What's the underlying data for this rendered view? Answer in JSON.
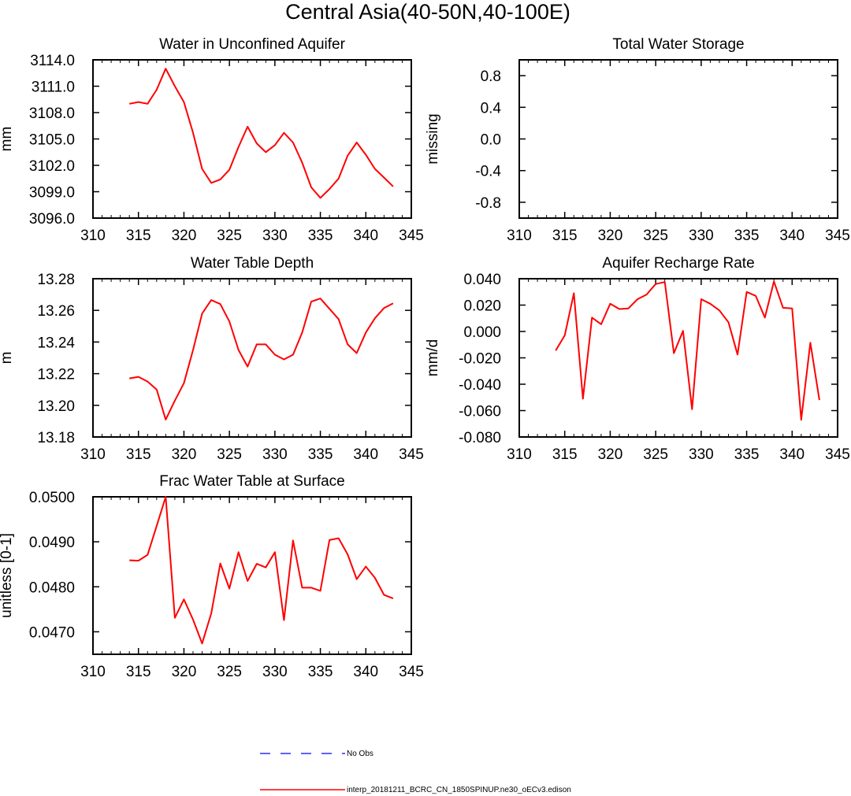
{
  "figure": {
    "title": "Central Asia(40-50N,40-100E)",
    "legend": [
      {
        "label": "No Obs",
        "color": "#0000ff",
        "style": "dashed"
      },
      {
        "label": "interp_20181211_BCRC_CN_1850SPINUP.ne30_oECv3.edison",
        "color": "#ff0000",
        "style": "solid"
      }
    ]
  },
  "chart_data": [
    {
      "type": "line",
      "title": "Water in Unconfined Aquifer",
      "ylabel": "mm",
      "xlim": [
        310,
        345
      ],
      "ylim": [
        3096,
        3114
      ],
      "xticks": [
        "310",
        "315",
        "320",
        "325",
        "330",
        "335",
        "340",
        "345"
      ],
      "yticks": [
        "3096.0",
        "3099.0",
        "3102.0",
        "3105.0",
        "3108.0",
        "3111.0",
        "3114.0"
      ],
      "series": [
        {
          "color": "#ff0000",
          "x": [
            314,
            315,
            316,
            317,
            318,
            319,
            320,
            321,
            322,
            323,
            324,
            325,
            326,
            327,
            328,
            329,
            330,
            331,
            332,
            333,
            334,
            335,
            336,
            337,
            338,
            339,
            340,
            341,
            342,
            343
          ],
          "values": [
            3109.0,
            3109.2,
            3109.0,
            3110.6,
            3113.0,
            3111.0,
            3109.2,
            3105.7,
            3101.6,
            3100.0,
            3100.4,
            3101.5,
            3104.1,
            3106.4,
            3104.5,
            3103.5,
            3104.3,
            3105.7,
            3104.6,
            3102.3,
            3099.5,
            3098.3,
            3099.3,
            3100.5,
            3103.1,
            3104.6,
            3103.2,
            3101.6,
            3100.6,
            3099.6
          ]
        }
      ]
    },
    {
      "type": "line",
      "title": "Total Water Storage",
      "ylabel": "missing",
      "xlim": [
        310,
        345
      ],
      "ylim": [
        -1,
        1
      ],
      "xticks": [
        "310",
        "315",
        "320",
        "325",
        "330",
        "335",
        "340",
        "345"
      ],
      "yticks": [
        "-0.8",
        "-0.4",
        "0.0",
        "0.4",
        "0.8"
      ],
      "series": []
    },
    {
      "type": "line",
      "title": "Water Table Depth",
      "ylabel": "m",
      "xlim": [
        310,
        345
      ],
      "ylim": [
        13.18,
        13.28
      ],
      "xticks": [
        "310",
        "315",
        "320",
        "325",
        "330",
        "335",
        "340",
        "345"
      ],
      "yticks": [
        "13.18",
        "13.20",
        "13.22",
        "13.24",
        "13.26",
        "13.28"
      ],
      "series": [
        {
          "color": "#ff0000",
          "x": [
            314,
            315,
            316,
            317,
            318,
            319,
            320,
            321,
            322,
            323,
            324,
            325,
            326,
            327,
            328,
            329,
            330,
            331,
            332,
            333,
            334,
            335,
            336,
            337,
            338,
            339,
            340,
            341,
            342,
            343
          ],
          "values": [
            13.217,
            13.218,
            13.215,
            13.21,
            13.191,
            13.203,
            13.214,
            13.235,
            13.258,
            13.2665,
            13.264,
            13.253,
            13.235,
            13.2245,
            13.2385,
            13.2385,
            13.232,
            13.229,
            13.232,
            13.246,
            13.2655,
            13.2675,
            13.261,
            13.2545,
            13.2385,
            13.233,
            13.246,
            13.255,
            13.2615,
            13.2645
          ]
        }
      ]
    },
    {
      "type": "line",
      "title": "Aquifer Recharge Rate",
      "ylabel": "mm/d",
      "xlim": [
        310,
        345
      ],
      "ylim": [
        -0.08,
        0.04
      ],
      "xticks": [
        "310",
        "315",
        "320",
        "325",
        "330",
        "335",
        "340",
        "345"
      ],
      "yticks": [
        "-0.080",
        "-0.060",
        "-0.040",
        "-0.020",
        "0.000",
        "0.020",
        "0.040"
      ],
      "series": [
        {
          "color": "#ff0000",
          "x": [
            314,
            315,
            316,
            317,
            318,
            319,
            320,
            321,
            322,
            323,
            324,
            325,
            326,
            327,
            328,
            329,
            330,
            331,
            332,
            333,
            334,
            335,
            336,
            337,
            338,
            339,
            340,
            341,
            342,
            343
          ],
          "values": [
            -0.0145,
            -0.003,
            0.029,
            -0.051,
            0.0105,
            0.0055,
            0.021,
            0.017,
            0.0175,
            0.0245,
            0.028,
            0.036,
            0.0375,
            -0.0165,
            0.0005,
            -0.059,
            0.0245,
            0.021,
            0.016,
            0.007,
            -0.0175,
            0.03,
            0.027,
            0.0105,
            0.038,
            0.018,
            0.0175,
            -0.067,
            -0.0085,
            -0.052
          ]
        }
      ]
    },
    {
      "type": "line",
      "title": "Frac Water Table at Surface",
      "ylabel": "unitless [0-1]",
      "xlim": [
        310,
        345
      ],
      "ylim": [
        0.0465,
        0.05
      ],
      "xticks": [
        "310",
        "315",
        "320",
        "325",
        "330",
        "335",
        "340",
        "345"
      ],
      "yticks": [
        "0.0470",
        "0.0480",
        "0.0490",
        "0.0500"
      ],
      "series": [
        {
          "color": "#ff0000",
          "x": [
            314,
            315,
            316,
            317,
            318,
            319,
            320,
            321,
            322,
            323,
            324,
            325,
            326,
            327,
            328,
            329,
            330,
            331,
            332,
            333,
            334,
            335,
            336,
            337,
            338,
            339,
            340,
            341,
            342,
            343
          ],
          "values": [
            0.04859,
            0.04858,
            0.04871,
            0.04935,
            0.05,
            0.04731,
            0.04772,
            0.04727,
            0.04674,
            0.04741,
            0.04852,
            0.04796,
            0.04877,
            0.04813,
            0.04851,
            0.04843,
            0.04877,
            0.04726,
            0.04903,
            0.04798,
            0.04798,
            0.04791,
            0.04904,
            0.04908,
            0.04872,
            0.04817,
            0.04845,
            0.0482,
            0.04782,
            0.04774
          ]
        }
      ]
    }
  ]
}
